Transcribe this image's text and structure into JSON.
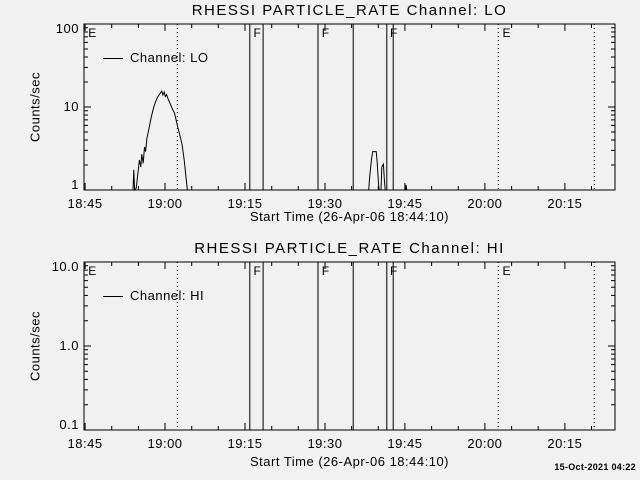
{
  "window": {
    "bg": "#f1f1f1",
    "fg": "#000000"
  },
  "timestamp": "15-Oct-2021 04:22",
  "chart_data": [
    {
      "type": "line",
      "title": "RHESSI PARTICLE_RATE Channel: LO",
      "xlabel": "Start Time (26-Apr-06 18:44:10)",
      "ylabel": "Counts/sec",
      "yscale": "log",
      "ylim": [
        1,
        100
      ],
      "yticks": [
        {
          "value": 100,
          "label": "100"
        },
        {
          "value": 10,
          "label": "10"
        },
        {
          "value": 1,
          "label": "1"
        }
      ],
      "xlim_minutes_from_1845": [
        -0.2,
        99.4
      ],
      "xticks": [
        {
          "t": 0,
          "label": "18:45"
        },
        {
          "t": 15,
          "label": "19:00"
        },
        {
          "t": 30,
          "label": "19:15"
        },
        {
          "t": 45,
          "label": "19:30"
        },
        {
          "t": 60,
          "label": "19:45"
        },
        {
          "t": 75,
          "label": "20:00"
        },
        {
          "t": 90,
          "label": "20:15"
        }
      ],
      "x_minor_step_minutes": 5,
      "legend": "Channel: LO",
      "flare_lines_t": [
        30.9,
        33.4,
        43.7,
        50.3,
        56.6,
        57.8
      ],
      "flare_labels": [
        {
          "text": "F",
          "t": 31.4
        },
        {
          "text": "F",
          "t": 44.2
        },
        {
          "text": "F",
          "t": 57.0
        }
      ],
      "eclipse_lines_t": [
        17.3,
        77.5,
        95.5
      ],
      "eclipse_labels": [
        {
          "text": "E",
          "t": 0.4
        },
        {
          "text": "E",
          "t": 78.1
        }
      ],
      "series": [
        {
          "name": "Channel: LO",
          "points": [
            [
              -0.2,
              1.0
            ],
            [
              9.0,
              1.0
            ],
            [
              9.15,
              1.75
            ],
            [
              9.3,
              1.0
            ],
            [
              9.6,
              1.05
            ],
            [
              9.9,
              1.55
            ],
            [
              10.2,
              2.3
            ],
            [
              10.45,
              1.9
            ],
            [
              10.65,
              2.7
            ],
            [
              10.9,
              2.1
            ],
            [
              11.15,
              3.3
            ],
            [
              11.35,
              2.9
            ],
            [
              11.6,
              4.2
            ],
            [
              12.0,
              5.5
            ],
            [
              12.4,
              7.5
            ],
            [
              12.8,
              9.5
            ],
            [
              13.2,
              11.5
            ],
            [
              13.6,
              13.2
            ],
            [
              14.0,
              14.3
            ],
            [
              14.4,
              15.6
            ],
            [
              14.6,
              14.0
            ],
            [
              14.85,
              15.1
            ],
            [
              15.05,
              13.4
            ],
            [
              15.3,
              14.1
            ],
            [
              15.6,
              12.4
            ],
            [
              16.0,
              10.8
            ],
            [
              16.4,
              9.4
            ],
            [
              16.8,
              8.4
            ],
            [
              17.1,
              6.9
            ],
            [
              17.4,
              5.7
            ],
            [
              17.8,
              4.5
            ],
            [
              18.2,
              3.5
            ],
            [
              18.6,
              2.3
            ],
            [
              18.9,
              1.5
            ],
            [
              19.2,
              1.0
            ],
            [
              53.2,
              1.0
            ],
            [
              53.35,
              1.35
            ],
            [
              53.55,
              1.85
            ],
            [
              53.75,
              2.4
            ],
            [
              53.95,
              2.9
            ],
            [
              54.6,
              2.9
            ],
            [
              54.8,
              2.15
            ],
            [
              55.0,
              1.3
            ],
            [
              55.15,
              1.0
            ],
            [
              55.5,
              1.0
            ],
            [
              55.65,
              1.9
            ],
            [
              55.95,
              2.05
            ],
            [
              56.15,
              1.3
            ],
            [
              56.3,
              1.0
            ],
            [
              60.1,
              1.0
            ],
            [
              60.2,
              1.15
            ],
            [
              60.35,
              1.0
            ],
            [
              99.4,
              1.0
            ]
          ]
        }
      ]
    },
    {
      "type": "line",
      "title": "RHESSI PARTICLE_RATE Channel: HI",
      "xlabel": "Start Time (26-Apr-06 18:44:10)",
      "ylabel": "Counts/sec",
      "yscale": "log",
      "ylim": [
        0.1,
        10
      ],
      "yticks": [
        {
          "value": 10,
          "label": "10.0"
        },
        {
          "value": 1,
          "label": "1.0"
        },
        {
          "value": 0.1,
          "label": "0.1"
        }
      ],
      "xlim_minutes_from_1845": [
        -0.2,
        99.4
      ],
      "xticks": [
        {
          "t": 0,
          "label": "18:45"
        },
        {
          "t": 15,
          "label": "19:00"
        },
        {
          "t": 30,
          "label": "19:15"
        },
        {
          "t": 45,
          "label": "19:30"
        },
        {
          "t": 60,
          "label": "19:45"
        },
        {
          "t": 75,
          "label": "20:00"
        },
        {
          "t": 90,
          "label": "20:15"
        }
      ],
      "x_minor_step_minutes": 5,
      "legend": "Channel: HI",
      "flare_lines_t": [
        30.9,
        33.4,
        43.7,
        50.3,
        56.6,
        57.8
      ],
      "flare_labels": [
        {
          "text": "F",
          "t": 31.4
        },
        {
          "text": "F",
          "t": 44.2
        },
        {
          "text": "F",
          "t": 57.0
        }
      ],
      "eclipse_lines_t": [
        17.3,
        77.5,
        95.5
      ],
      "eclipse_labels": [
        {
          "text": "E",
          "t": 0.4
        },
        {
          "text": "E",
          "t": 78.1
        }
      ],
      "series": [
        {
          "name": "Channel: HI",
          "points": [
            [
              -0.2,
              0.1
            ],
            [
              99.4,
              0.1
            ]
          ]
        }
      ]
    }
  ]
}
